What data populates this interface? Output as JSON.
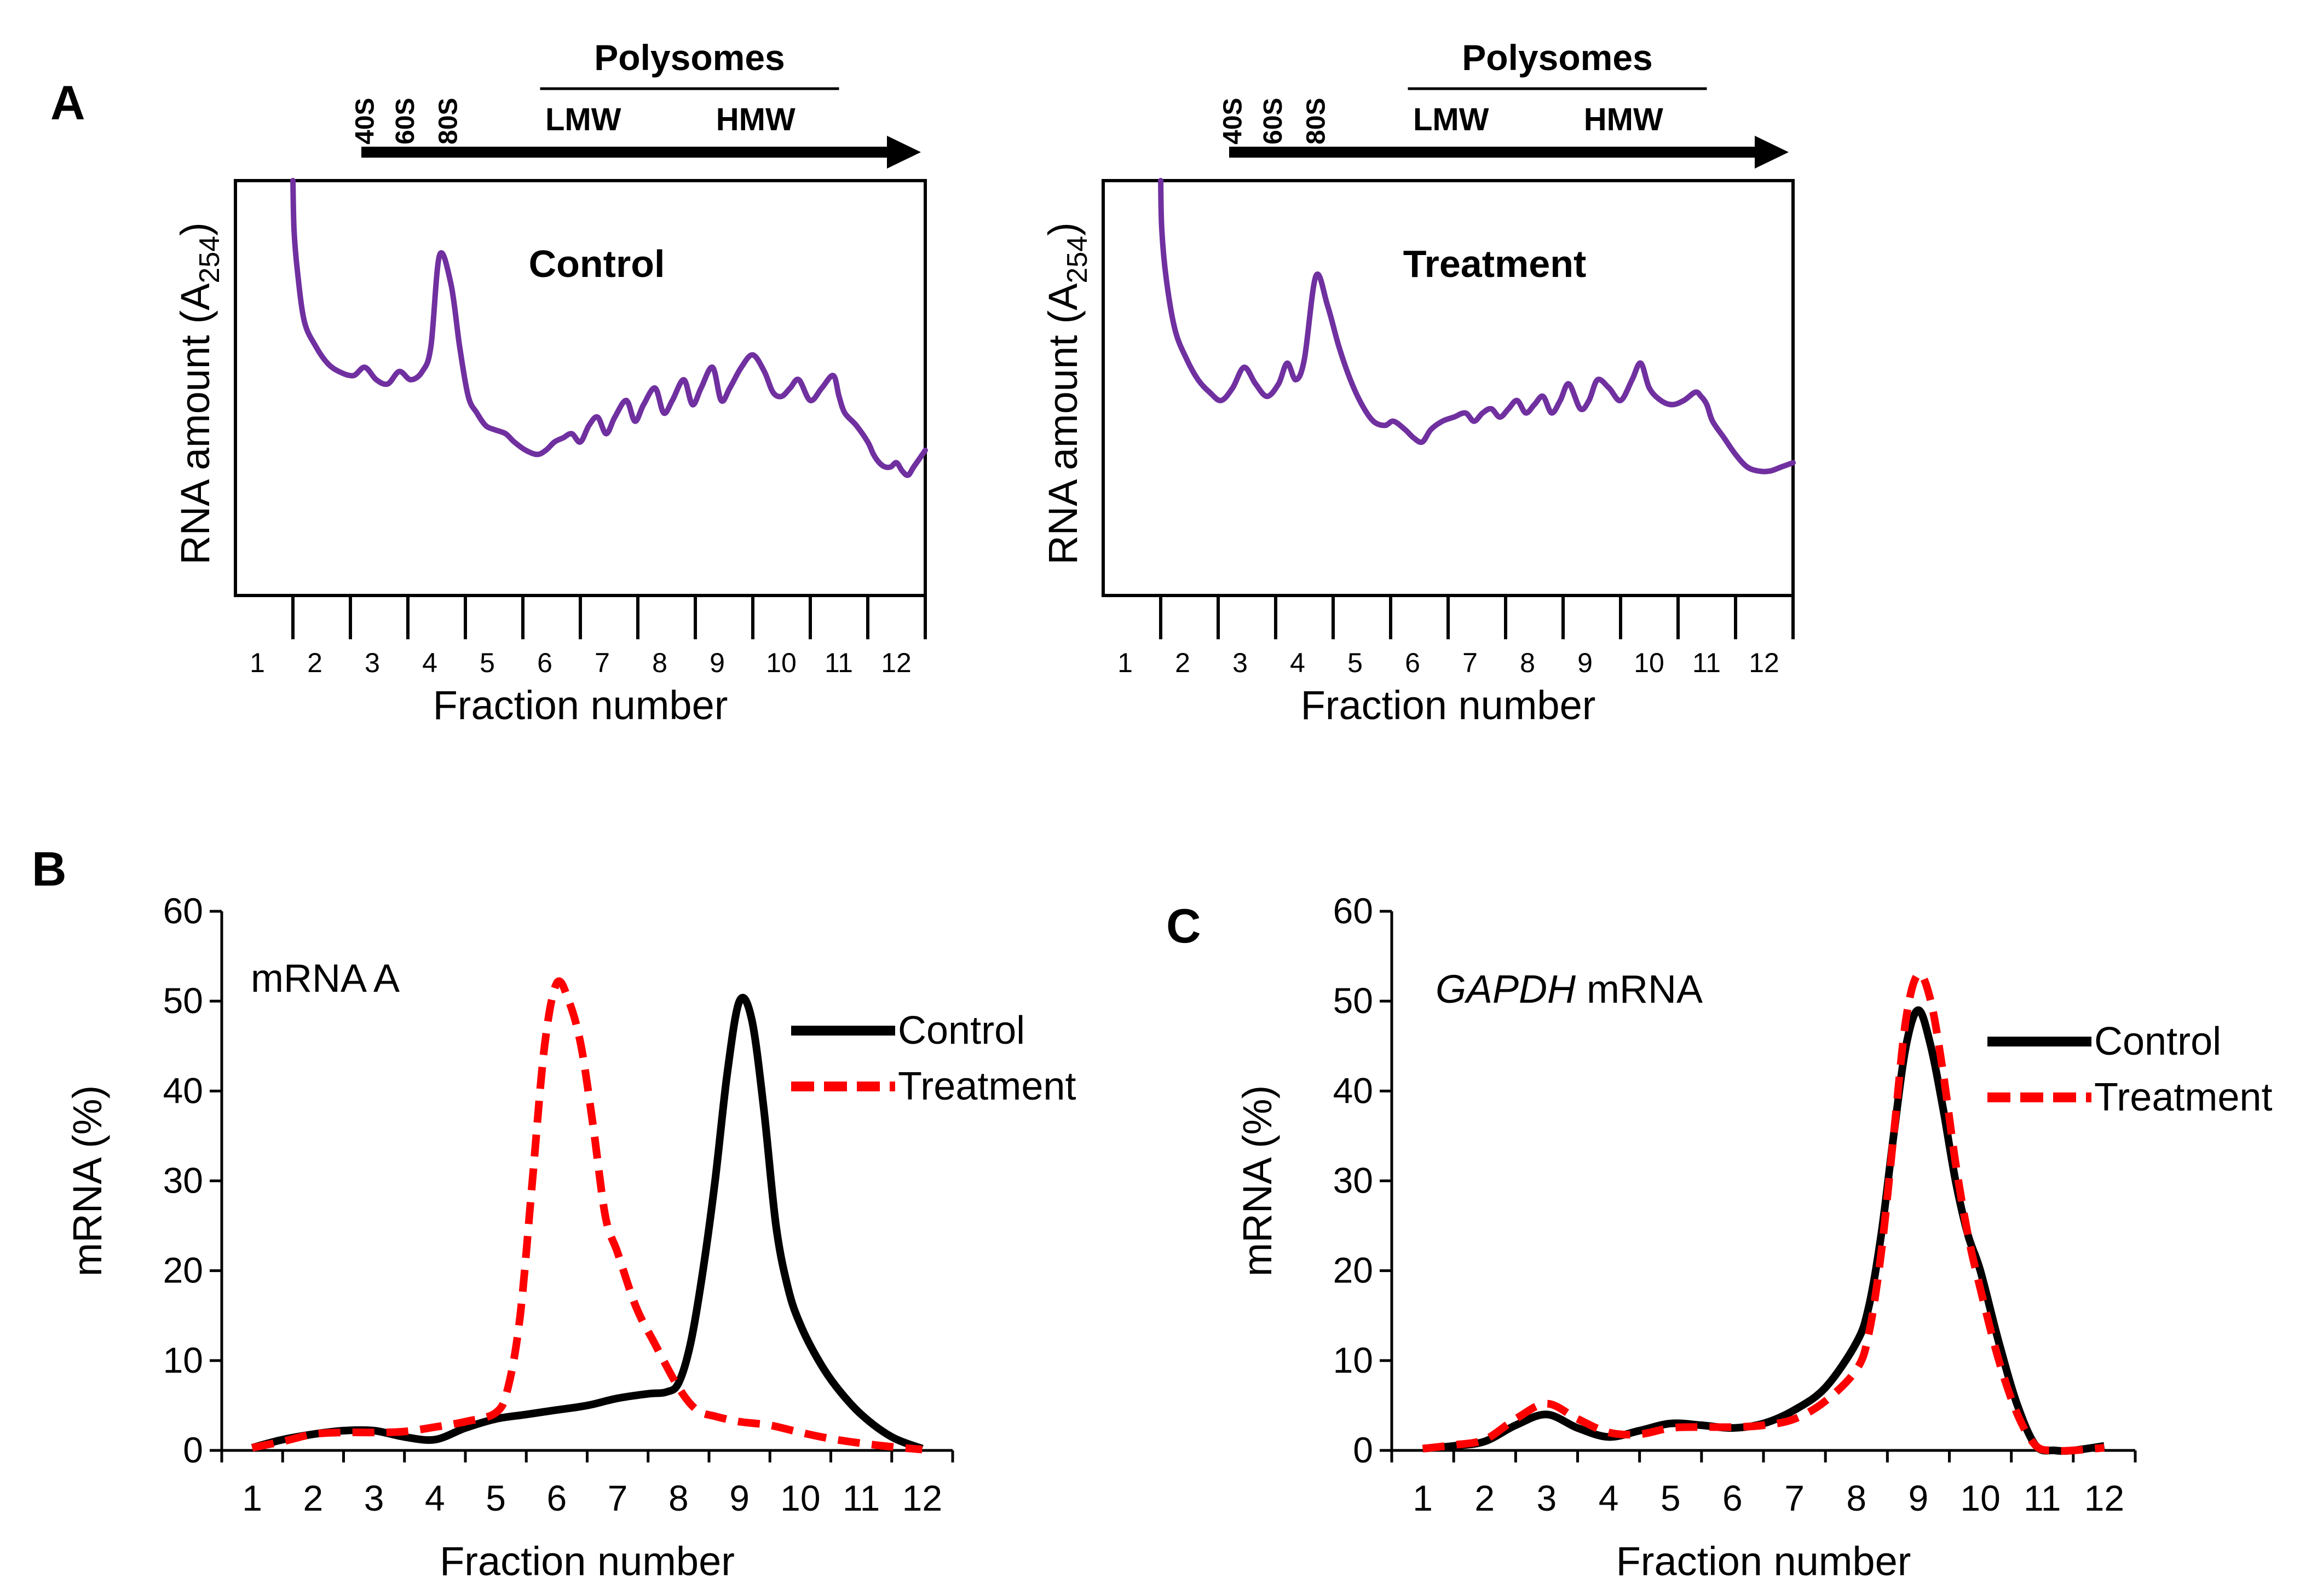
{
  "figure": {
    "panels": {
      "A": {
        "letter": "A"
      },
      "B": {
        "letter": "B"
      },
      "C": {
        "letter": "C"
      }
    }
  },
  "chart_data": [
    {
      "id": "A-control",
      "type": "line",
      "panel": "A",
      "title": "Control",
      "xlabel": "Fraction number",
      "ylabel": "RNA amount (A254)",
      "ylabel_parts": {
        "main": "RNA amount (A",
        "sub": "254",
        "close": ")"
      },
      "x_ticks": [
        "1",
        "2",
        "3",
        "4",
        "5",
        "6",
        "7",
        "8",
        "9",
        "10",
        "11",
        "12"
      ],
      "xlim": [
        0.5,
        12.5
      ],
      "ylim": [
        0,
        100
      ],
      "y_ticks_shown": false,
      "grid": false,
      "annotations": {
        "top_labels": [
          "40S",
          "60S",
          "80S"
        ],
        "polysomes": "Polysomes",
        "lmw": "LMW",
        "hmw": "HMW"
      },
      "series": [
        {
          "color": "#7030a0",
          "x": [
            1.5,
            1.52,
            1.58,
            1.7,
            1.9,
            2.1,
            2.3,
            2.55,
            2.75,
            2.95,
            3.15,
            3.35,
            3.55,
            3.75,
            3.9,
            4.05,
            4.25,
            4.4,
            4.55,
            4.7,
            4.85,
            5.0,
            5.2,
            5.35,
            5.55,
            5.75,
            5.9,
            6.05,
            6.2,
            6.35,
            6.5,
            6.65,
            6.8,
            6.95,
            7.1,
            7.3,
            7.45,
            7.6,
            7.8,
            7.95,
            8.1,
            8.3,
            8.45,
            8.6,
            8.8,
            8.95,
            9.1,
            9.3,
            9.5,
            9.7,
            9.85,
            10.0,
            10.15,
            10.3,
            10.5,
            10.7,
            10.9,
            11.0,
            11.1,
            11.3,
            11.5,
            11.6,
            11.7,
            11.8,
            11.9,
            12.0,
            12.1,
            12.2,
            12.3,
            12.5
          ],
          "y": [
            100,
            88,
            78,
            66,
            60,
            56,
            54,
            53,
            55,
            52,
            51,
            54,
            52,
            54,
            60,
            82,
            75,
            60,
            48,
            44,
            41,
            40,
            39,
            37,
            35,
            34,
            35,
            37,
            38,
            39,
            37,
            41,
            43,
            39,
            43,
            47,
            42,
            46,
            50,
            44,
            47,
            52,
            46,
            50,
            55,
            47,
            50,
            55,
            58,
            54,
            49,
            48,
            50,
            52,
            47,
            50,
            53,
            48,
            44,
            41,
            37,
            34,
            32,
            31,
            31,
            32,
            30,
            29,
            31,
            35
          ]
        }
      ]
    },
    {
      "id": "A-treatment",
      "type": "line",
      "panel": "A",
      "title": "Treatment",
      "xlabel": "Fraction number",
      "ylabel": "RNA amount (A254)",
      "ylabel_parts": {
        "main": "RNA amount (A",
        "sub": "254",
        "close": ")"
      },
      "x_ticks": [
        "1",
        "2",
        "3",
        "4",
        "5",
        "6",
        "7",
        "8",
        "9",
        "10",
        "11",
        "12"
      ],
      "xlim": [
        0.5,
        12.5
      ],
      "ylim": [
        0,
        100
      ],
      "y_ticks_shown": false,
      "grid": false,
      "annotations": {
        "top_labels": [
          "40S",
          "60S",
          "80S"
        ],
        "polysomes": "Polysomes",
        "lmw": "LMW",
        "hmw": "HMW"
      },
      "series": [
        {
          "color": "#7030a0",
          "x": [
            1.5,
            1.52,
            1.6,
            1.75,
            1.95,
            2.15,
            2.35,
            2.55,
            2.75,
            2.95,
            3.15,
            3.35,
            3.55,
            3.7,
            3.85,
            4.0,
            4.2,
            4.4,
            4.6,
            4.8,
            5.0,
            5.2,
            5.4,
            5.55,
            5.75,
            5.9,
            6.05,
            6.2,
            6.4,
            6.6,
            6.8,
            6.95,
            7.1,
            7.25,
            7.4,
            7.55,
            7.7,
            7.85,
            8.0,
            8.15,
            8.3,
            8.45,
            8.6,
            8.8,
            8.95,
            9.1,
            9.3,
            9.5,
            9.7,
            9.85,
            10.0,
            10.2,
            10.4,
            10.6,
            10.8,
            10.9,
            11.0,
            11.1,
            11.3,
            11.5,
            11.7,
            11.9,
            12.1,
            12.3,
            12.5
          ],
          "y": [
            100,
            88,
            76,
            64,
            57,
            52,
            49,
            47,
            50,
            55,
            51,
            48,
            51,
            56,
            52,
            57,
            77,
            70,
            60,
            52,
            46,
            42,
            41,
            42,
            40,
            38,
            37,
            40,
            42,
            43,
            44,
            42,
            44,
            45,
            43,
            45,
            47,
            44,
            46,
            48,
            44,
            47,
            51,
            45,
            47,
            52,
            50,
            47,
            52,
            56,
            50,
            47,
            46,
            47,
            49,
            48,
            46,
            42,
            38,
            34,
            31,
            30,
            30,
            31,
            32
          ]
        }
      ]
    },
    {
      "id": "B",
      "type": "line",
      "panel": "B",
      "title": "mRNA A",
      "xlabel": "Fraction number",
      "ylabel": "mRNA (%)",
      "x_ticks": [
        "1",
        "2",
        "3",
        "4",
        "5",
        "6",
        "7",
        "8",
        "9",
        "10",
        "11",
        "12"
      ],
      "y_ticks": [
        "0",
        "10",
        "20",
        "30",
        "40",
        "50",
        "60"
      ],
      "xlim": [
        0.5,
        12.5
      ],
      "ylim": [
        0,
        60
      ],
      "grid": false,
      "legend": "right",
      "series": [
        {
          "name": "Control",
          "color": "#000000",
          "style": "solid",
          "x": [
            1,
            1.5,
            2,
            2.5,
            3,
            3.5,
            4,
            4.5,
            5,
            5.5,
            6,
            6.5,
            7,
            7.5,
            7.8,
            8,
            8.2,
            8.4,
            8.6,
            8.8,
            9,
            9.2,
            9.4,
            9.6,
            9.8,
            10,
            10.3,
            10.6,
            11,
            11.5,
            12
          ],
          "y": [
            0.3,
            1.2,
            1.8,
            2.2,
            2.2,
            1.5,
            1.2,
            2.5,
            3.5,
            4.0,
            4.5,
            5.0,
            5.8,
            6.3,
            6.5,
            7.5,
            12,
            20,
            30,
            42,
            50,
            48,
            38,
            25,
            18,
            14,
            10,
            7,
            4,
            1.5,
            0.2
          ]
        },
        {
          "name": "Treatment",
          "color": "#ff0000",
          "style": "dashed",
          "x": [
            1,
            1.5,
            2,
            2.5,
            3,
            3.5,
            4,
            4.5,
            5,
            5.2,
            5.4,
            5.6,
            5.8,
            6,
            6.2,
            6.4,
            6.6,
            6.8,
            7,
            7.3,
            7.6,
            8,
            8.3,
            8.6,
            9,
            9.5,
            10,
            10.5,
            11,
            11.5,
            12
          ],
          "y": [
            0.3,
            1.0,
            1.8,
            2.0,
            2.0,
            2.1,
            2.6,
            3.2,
            4.2,
            7,
            15,
            30,
            45,
            52,
            50,
            45,
            36,
            26,
            22,
            16,
            12,
            7,
            4.5,
            3.8,
            3.2,
            2.8,
            2.0,
            1.3,
            0.8,
            0.4,
            0.1
          ]
        }
      ]
    },
    {
      "id": "C",
      "type": "line",
      "panel": "C",
      "title": "GAPDH mRNA",
      "title_parts": {
        "italic": "GAPDH",
        "rest": " mRNA"
      },
      "xlabel": "Fraction number",
      "ylabel": "mRNA (%)",
      "x_ticks": [
        "1",
        "2",
        "3",
        "4",
        "5",
        "6",
        "7",
        "8",
        "9",
        "10",
        "11",
        "12"
      ],
      "y_ticks": [
        "0",
        "10",
        "20",
        "30",
        "40",
        "50",
        "60"
      ],
      "xlim": [
        0.5,
        12.5
      ],
      "ylim": [
        0,
        60
      ],
      "grid": false,
      "legend": "right",
      "series": [
        {
          "name": "Control",
          "color": "#000000",
          "style": "solid",
          "x": [
            1,
            1.5,
            2,
            2.5,
            3,
            3.5,
            4,
            4.5,
            5,
            5.5,
            6,
            6.5,
            7,
            7.5,
            8,
            8.2,
            8.4,
            8.6,
            8.8,
            9,
            9.2,
            9.4,
            9.6,
            9.8,
            10,
            10.3,
            10.6,
            10.9,
            11.2,
            11.5,
            12
          ],
          "y": [
            0.2,
            0.5,
            1.0,
            2.8,
            4.0,
            2.5,
            1.5,
            2.2,
            3.0,
            2.8,
            2.5,
            3.0,
            4.5,
            7.0,
            12,
            16,
            24,
            35,
            45,
            49,
            45,
            38,
            30,
            24,
            20,
            12,
            5,
            0.5,
            0,
            0,
            0.5
          ]
        },
        {
          "name": "Treatment",
          "color": "#ff0000",
          "style": "dashed",
          "x": [
            1,
            1.5,
            2,
            2.5,
            3,
            3.5,
            4,
            4.5,
            5,
            5.5,
            6,
            6.5,
            7,
            7.5,
            8,
            8.2,
            8.4,
            8.6,
            8.8,
            9,
            9.2,
            9.4,
            9.6,
            9.8,
            10,
            10.3,
            10.6,
            10.9,
            11.2,
            11.5,
            12
          ],
          "y": [
            0.2,
            0.6,
            1.2,
            3.5,
            5.2,
            3.5,
            2.0,
            1.8,
            2.5,
            2.6,
            2.6,
            2.8,
            3.5,
            5.5,
            9,
            13,
            22,
            35,
            48,
            53,
            50,
            42,
            32,
            24,
            18,
            10,
            4,
            0.5,
            0,
            0,
            0.3
          ]
        }
      ]
    }
  ]
}
